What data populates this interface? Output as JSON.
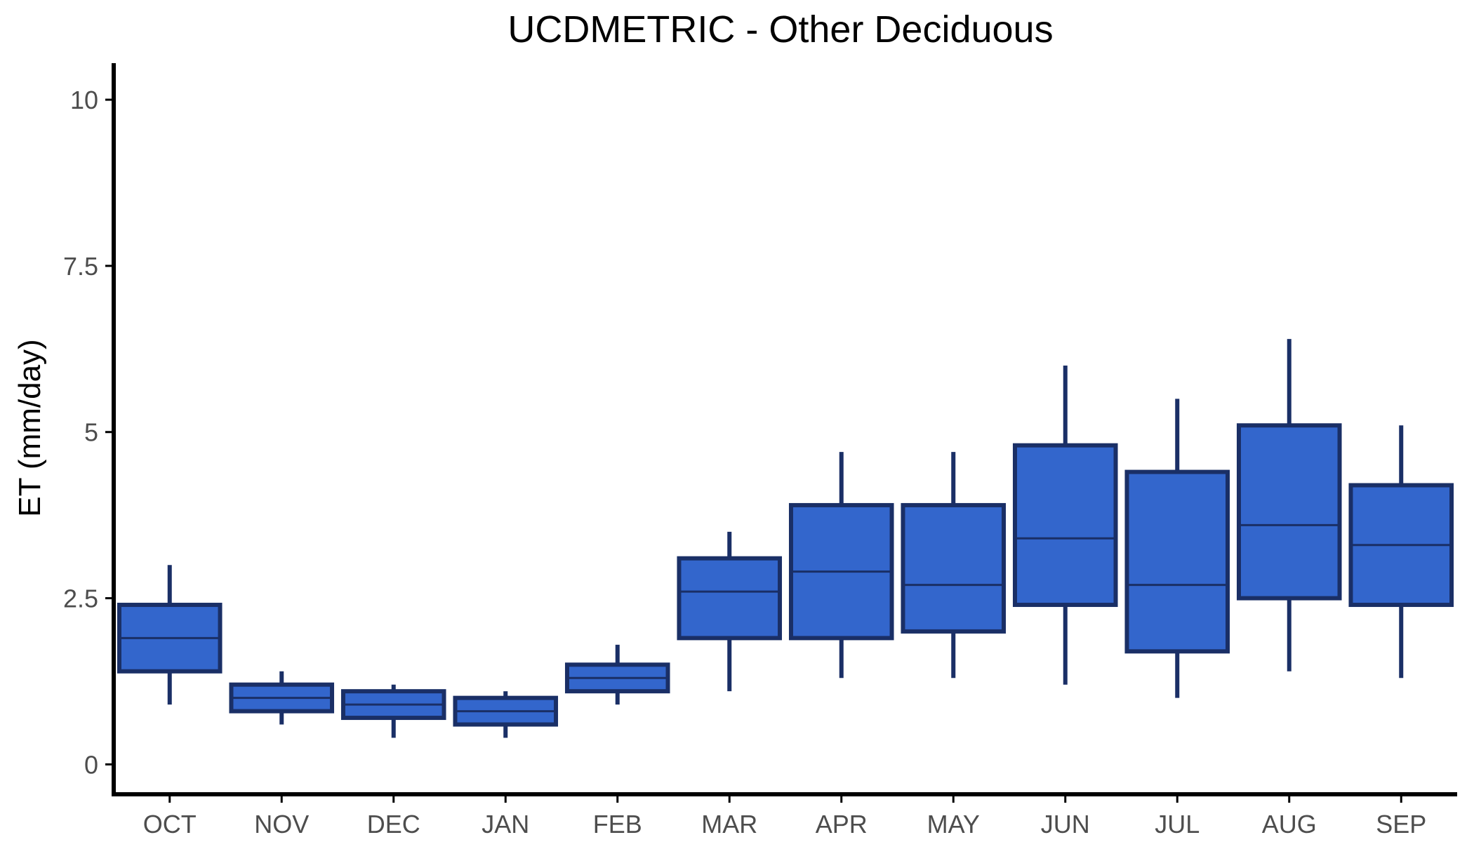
{
  "chart_data": {
    "type": "boxplot",
    "title": "UCDMETRIC - Other Deciduous",
    "xlabel": "",
    "ylabel": "ET (mm/day)",
    "ylim": [
      -0.45,
      10.55
    ],
    "yticks": [
      0,
      2.5,
      5,
      7.5,
      10
    ],
    "ytick_labels": [
      "0",
      "2.5",
      "5",
      "7.5",
      "10"
    ],
    "categories": [
      "OCT",
      "NOV",
      "DEC",
      "JAN",
      "FEB",
      "MAR",
      "APR",
      "MAY",
      "JUN",
      "JUL",
      "AUG",
      "SEP"
    ],
    "series": [
      {
        "boxes": [
          {
            "min": 0.9,
            "q1": 1.4,
            "median": 1.9,
            "q3": 2.4,
            "max": 3.0
          },
          {
            "min": 0.6,
            "q1": 0.8,
            "median": 1.0,
            "q3": 1.2,
            "max": 1.4
          },
          {
            "min": 0.4,
            "q1": 0.7,
            "median": 0.9,
            "q3": 1.1,
            "max": 1.2
          },
          {
            "min": 0.4,
            "q1": 0.6,
            "median": 0.8,
            "q3": 1.0,
            "max": 1.1
          },
          {
            "min": 0.9,
            "q1": 1.1,
            "median": 1.3,
            "q3": 1.5,
            "max": 1.8
          },
          {
            "min": 1.1,
            "q1": 1.9,
            "median": 2.6,
            "q3": 3.1,
            "max": 3.5
          },
          {
            "min": 1.3,
            "q1": 1.9,
            "median": 2.9,
            "q3": 3.9,
            "max": 4.7
          },
          {
            "min": 1.3,
            "q1": 2.0,
            "median": 2.7,
            "q3": 3.9,
            "max": 4.7
          },
          {
            "min": 1.2,
            "q1": 2.4,
            "median": 3.4,
            "q3": 4.8,
            "max": 6.0
          },
          {
            "min": 1.0,
            "q1": 1.7,
            "median": 2.7,
            "q3": 4.4,
            "max": 5.5
          },
          {
            "min": 1.4,
            "q1": 2.5,
            "median": 3.6,
            "q3": 5.1,
            "max": 6.4
          },
          {
            "min": 1.3,
            "q1": 2.4,
            "median": 3.3,
            "q3": 4.2,
            "max": 5.1
          }
        ]
      }
    ],
    "grid": false,
    "legend": "none",
    "colors": {
      "box_fill": "#3366CC",
      "box_stroke": "#1A2F66",
      "axis": "#000000",
      "tick_label": "#4D4D4D"
    }
  }
}
